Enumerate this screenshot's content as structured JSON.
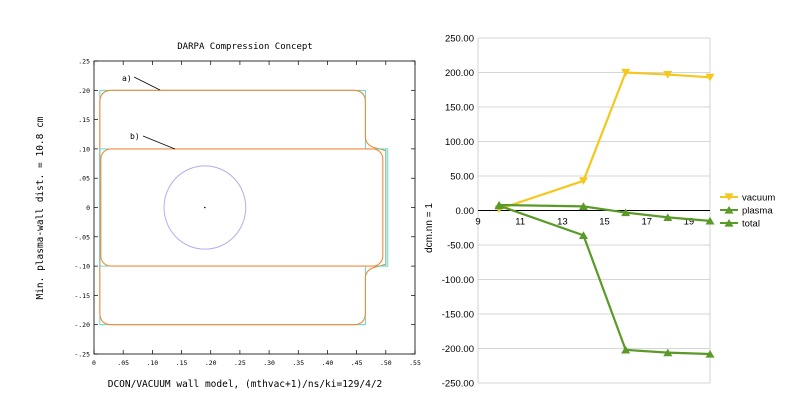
{
  "chart_data": [
    {
      "type": "line",
      "title": "DARPA Compression Concept",
      "xlabel": "DCON/VACUUM wall model, (mthvac+1)/ns/ki=129/4/2",
      "ylabel": "Min. plasma-wall dist. = 10.8 cm",
      "x_ticks": [
        "0",
        ".05",
        ".10",
        ".15",
        ".20",
        ".25",
        ".30",
        ".35",
        ".40",
        ".45",
        ".50",
        ".55"
      ],
      "y_ticks": [
        ".25",
        ".20",
        ".15",
        ".10",
        ".05",
        "0",
        "-.05",
        "-.10",
        "-.15",
        "-.20",
        "-.25"
      ],
      "xlim": [
        0,
        0.55
      ],
      "ylim": [
        -0.25,
        0.25
      ],
      "annotations": [
        "a)",
        "b)"
      ],
      "shapes": {
        "outer_wall": {
          "x_range": [
            0.01,
            0.465
          ],
          "y_range": [
            -0.2,
            0.2
          ],
          "notch_x": 0.5,
          "notch_y": [
            -0.1,
            0.1
          ]
        },
        "inner_wall": {
          "x_range": [
            0.01,
            0.5
          ],
          "y_range": [
            -0.1,
            0.1
          ]
        },
        "plasma_circle": {
          "center": [
            0.19,
            0.0
          ],
          "radius": 0.07
        }
      },
      "colors": {
        "wall": "#f08a3c",
        "wall_trace": "#3cd6c0",
        "plasma": "#b0b0f0"
      }
    },
    {
      "type": "line",
      "ylabel": "dcm.nn = 1",
      "x_ticks": [
        "9",
        "11",
        "13",
        "15",
        "17",
        "19"
      ],
      "y_ticks": [
        "250.00",
        "200.00",
        "150.00",
        "100.00",
        "50.00",
        "0.00",
        "-50.00",
        "-100.00",
        "-150.00",
        "-200.00",
        "-250.00"
      ],
      "xlim": [
        9,
        20
      ],
      "ylim": [
        -250,
        250
      ],
      "legend_position": "right",
      "series": [
        {
          "name": "vacuum",
          "color": "#f4c81e",
          "marker": "triangle-down",
          "x": [
            10,
            14,
            16,
            18,
            20
          ],
          "y": [
            2,
            43,
            200,
            197,
            193
          ]
        },
        {
          "name": "plasma",
          "color": "#5a9a28",
          "marker": "triangle-up",
          "x": [
            10,
            14,
            16,
            18,
            20
          ],
          "y": [
            8,
            6,
            -3,
            -10,
            -15
          ]
        },
        {
          "name": "total",
          "color": "#5a9a28",
          "marker": "triangle-up",
          "x": [
            10,
            14,
            16,
            18,
            20
          ],
          "y": [
            7,
            -36,
            -202,
            -206,
            -208
          ]
        }
      ]
    }
  ]
}
